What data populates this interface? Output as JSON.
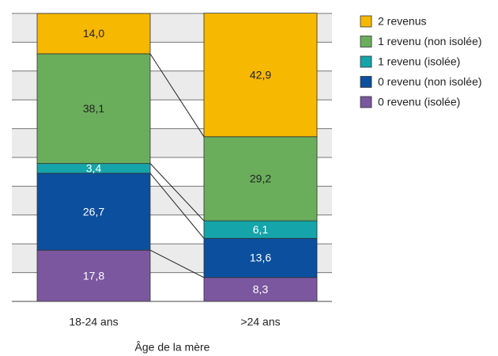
{
  "chart_data": {
    "type": "stacked_bar",
    "categories": [
      "18-24 ans",
      ">24 ans"
    ],
    "x_label": "Âge de la mère",
    "series": [
      {
        "name": "0 revenu (isolée)",
        "color": "#7b57a0",
        "values": [
          17.8,
          8.3
        ],
        "value_labels": [
          "17,8",
          "8,3"
        ]
      },
      {
        "name": "0 revenu (non isolée)",
        "color": "#0b4f9e",
        "values": [
          26.7,
          13.6
        ],
        "value_labels": [
          "26,7",
          "13,6"
        ]
      },
      {
        "name": "1 revenu (isolée)",
        "color": "#15a4a9",
        "values": [
          3.4,
          6.1
        ],
        "value_labels": [
          "3,4",
          "6,1"
        ]
      },
      {
        "name": "1 revenu (non isolée)",
        "color": "#6aae5b",
        "values": [
          38.1,
          29.2
        ],
        "value_labels": [
          "38,1",
          "29,2"
        ]
      },
      {
        "name": "2 revenus",
        "color": "#f6b800",
        "values": [
          14.0,
          42.9
        ],
        "value_labels": [
          "14,0",
          "42,9"
        ]
      }
    ],
    "ylim": [
      0,
      100
    ],
    "yticks": [
      0,
      10,
      20,
      30,
      40,
      50,
      60,
      70,
      80,
      90,
      100
    ],
    "grid": true
  }
}
